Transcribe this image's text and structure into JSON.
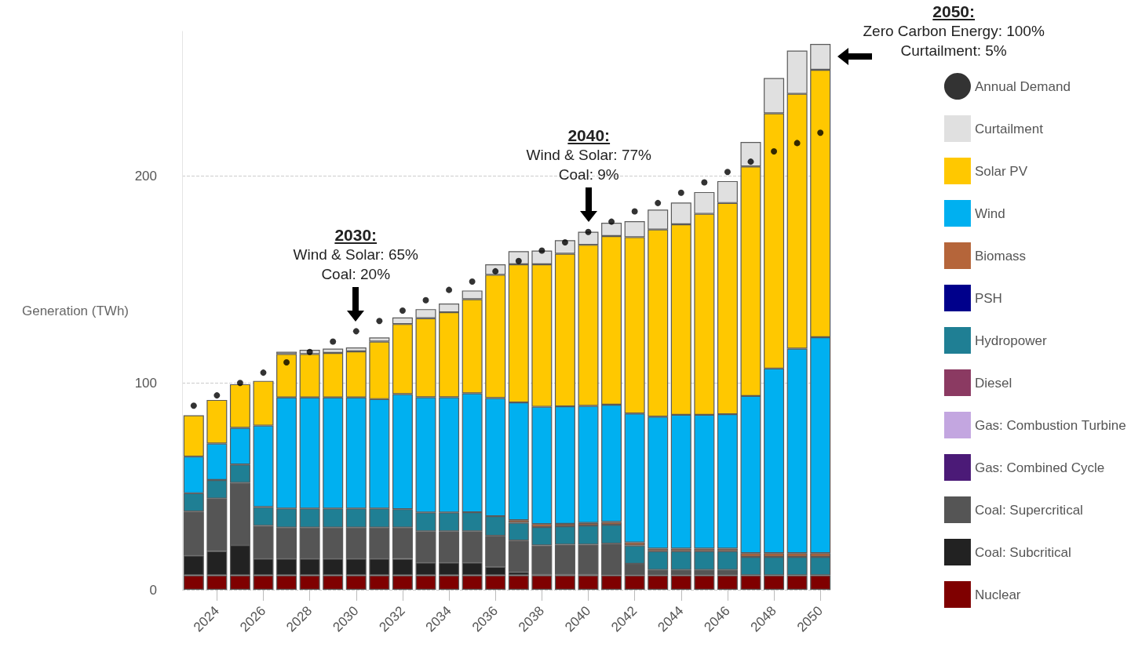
{
  "chart_data": {
    "type": "bar",
    "stacked": true,
    "ylabel": "Generation (TWh)",
    "categories": [
      null,
      "2024",
      null,
      "2026",
      null,
      "2028",
      null,
      "2030",
      null,
      "2032",
      null,
      "2034",
      null,
      "2036",
      null,
      "2038",
      null,
      "2040",
      null,
      "2042",
      null,
      "2044",
      null,
      "2046",
      null,
      "2048",
      null,
      "2050"
    ],
    "ylim": [
      0,
      270
    ],
    "yticks": [
      0,
      100,
      200
    ],
    "grid": "y",
    "legend": "right",
    "marker": "circle",
    "series": [
      {
        "name": "Nuclear",
        "color": "#7f0000",
        "values": [
          7,
          7,
          7,
          7,
          7,
          7,
          7,
          7,
          7,
          7,
          7,
          7,
          7,
          7,
          7,
          7,
          7,
          7,
          7,
          7,
          7,
          7,
          7,
          7,
          7,
          7,
          7,
          7
        ]
      },
      {
        "name": "Coal: Subcritical",
        "color": "#222222",
        "values": [
          9.6,
          11.7,
          14.6,
          8.1,
          8.1,
          8.1,
          8.1,
          8.1,
          8.1,
          8,
          6.2,
          6.2,
          6.2,
          4.1,
          1.6,
          0.5,
          0.5,
          0.5,
          0,
          0,
          0,
          0,
          0,
          0,
          0,
          0,
          0,
          0
        ]
      },
      {
        "name": "Coal: Supercritical",
        "color": "#555555",
        "values": [
          21.2,
          25.4,
          30.1,
          15.8,
          15,
          15,
          15,
          15,
          15,
          15.1,
          15.1,
          15.1,
          15.1,
          15,
          15.2,
          13.9,
          14.3,
          14.3,
          15.3,
          5.5,
          2.6,
          2.6,
          2.6,
          2.6,
          0,
          0,
          0,
          0
        ]
      },
      {
        "name": "Gas: Combined Cycle",
        "color": "#4b1a77",
        "values": [
          0,
          0,
          0,
          0,
          0,
          0,
          0,
          0,
          0,
          0,
          0,
          0,
          0,
          0,
          0,
          0,
          0,
          0,
          0,
          0,
          0,
          0,
          0,
          0,
          0,
          0,
          0,
          0
        ]
      },
      {
        "name": "Gas: Combustion Turbine",
        "color": "#c3a6e0",
        "values": [
          0,
          0,
          0,
          0,
          0,
          0,
          0,
          0,
          0,
          0,
          0,
          0,
          0,
          0,
          0,
          0,
          0,
          0,
          0,
          0,
          0,
          0,
          0,
          0,
          0,
          0,
          0,
          0
        ]
      },
      {
        "name": "Diesel",
        "color": "#8b3a62",
        "values": [
          0,
          0,
          0,
          0,
          0,
          0,
          0,
          0,
          0,
          0,
          0,
          0,
          0,
          0,
          0,
          0,
          0,
          0,
          0,
          0,
          0,
          0,
          0,
          0,
          0,
          0,
          0,
          0
        ]
      },
      {
        "name": "Hydropower",
        "color": "#1f7f94",
        "values": [
          8.9,
          9,
          8.9,
          9.1,
          9.2,
          9.2,
          9.2,
          9.2,
          9.2,
          8.9,
          9.1,
          9.1,
          9.2,
          9.5,
          8.6,
          8.9,
          8.9,
          9.3,
          9.2,
          8.9,
          9.1,
          9.1,
          9.1,
          9.1,
          8.9,
          8.9,
          8.9,
          8.9
        ]
      },
      {
        "name": "PSH",
        "color": "#00008b",
        "values": [
          0,
          0,
          0,
          0,
          0,
          0,
          0,
          0,
          0,
          0,
          0,
          0,
          0,
          0,
          0,
          0,
          0,
          0,
          0,
          0,
          0,
          0,
          0,
          0,
          0,
          0,
          0,
          0
        ]
      },
      {
        "name": "Biomass",
        "color": "#b5653a",
        "values": [
          0,
          0,
          0,
          0,
          0,
          0,
          0,
          0,
          0,
          0,
          0,
          0,
          0,
          0,
          1.3,
          1.5,
          1.2,
          1.2,
          1.3,
          1.5,
          1.2,
          1.2,
          1.2,
          1.2,
          1.8,
          1.8,
          1.8,
          1.8
        ]
      },
      {
        "name": "Wind",
        "color": "#00b0f0",
        "values": [
          17.7,
          17.6,
          17.7,
          39.4,
          53.7,
          53.7,
          53.7,
          53.7,
          52.9,
          55.6,
          55.7,
          55.7,
          57.5,
          57.1,
          56.9,
          56.7,
          56.8,
          56.6,
          56.7,
          62.3,
          63.8,
          64.7,
          64.7,
          65,
          76,
          89.3,
          98.9,
          104.4
        ]
      },
      {
        "name": "Solar PV",
        "color": "#ffc800",
        "values": [
          20,
          21.1,
          21.1,
          21.6,
          21,
          21,
          21.5,
          22.3,
          27.8,
          33.9,
          38.2,
          41.1,
          45.5,
          59.6,
          66.8,
          68.9,
          73.8,
          77.9,
          81.5,
          85.3,
          90.5,
          92.1,
          97.2,
          102.1,
          111,
          123.4,
          123.2,
          129.3
        ]
      },
      {
        "name": "Curtailment",
        "color": "#e0e0e0",
        "values": [
          0,
          0,
          0,
          0,
          1.1,
          2,
          2.1,
          1.9,
          2,
          3.2,
          4.4,
          4.2,
          4.2,
          5.1,
          6.3,
          6.6,
          6.5,
          6.3,
          6.5,
          7.7,
          9.6,
          10.5,
          10.5,
          10.6,
          11.8,
          17,
          20.9,
          12.5
        ]
      },
      {
        "name": "Annual Demand",
        "type": "scatter",
        "color": "#000000",
        "values": [
          89,
          94,
          100,
          105,
          110,
          115,
          120,
          125,
          130,
          135,
          140,
          145,
          149,
          154,
          159,
          164,
          168,
          173,
          178,
          183,
          187,
          192,
          197,
          202,
          207,
          212,
          216,
          221
        ]
      }
    ],
    "annotations": [
      "2030:\nWind & Solar: 65%\nCoal: 20%",
      "2040:\nWind & Solar: 77%\nCoal: 9%",
      "2050:\nZero Carbon Energy: 100%\nCurtailment: 5%"
    ]
  }
}
